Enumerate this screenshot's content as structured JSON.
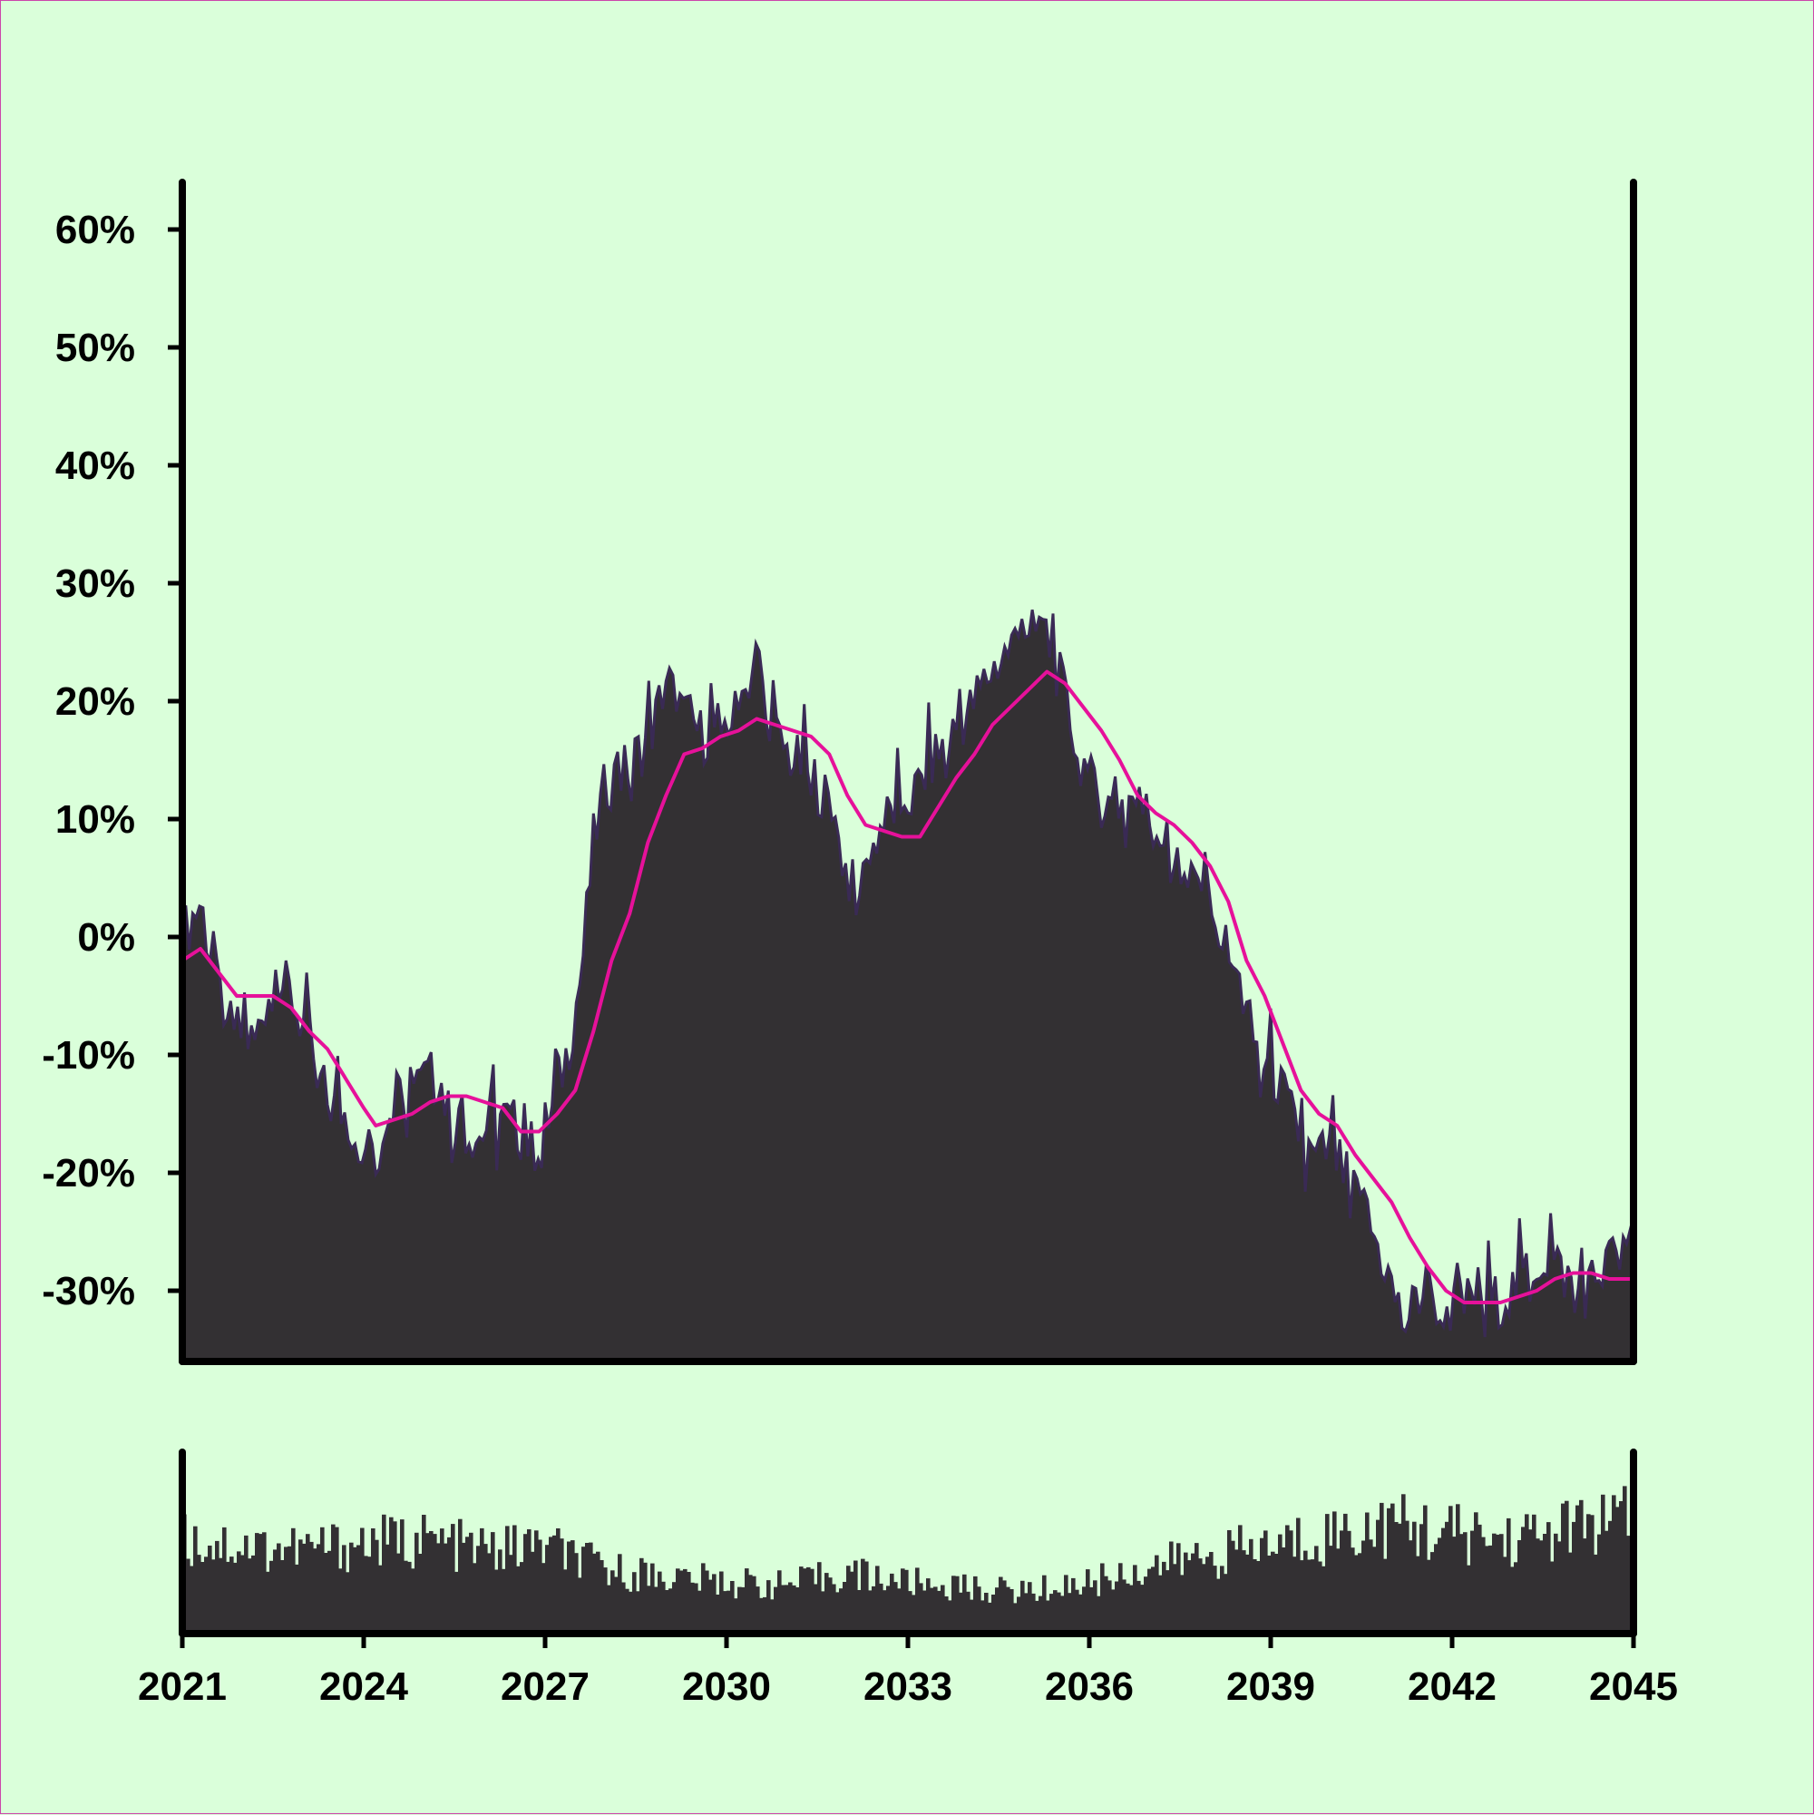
{
  "colors": {
    "background": "#daffda",
    "area_fill": "#333033",
    "area_edge": "#3a2a55",
    "moving_average": "#e6119a",
    "volume_bars": "#333033",
    "axes": "#000000"
  },
  "chart_data": [
    {
      "type": "area",
      "title": "",
      "xlabel": "",
      "ylabel": "",
      "x_ticks": [
        "2021",
        "2024",
        "2027",
        "2030",
        "2033",
        "2036",
        "2039",
        "2042",
        "2045"
      ],
      "y_ticks": [
        "60%",
        "50%",
        "40%",
        "30%",
        "20%",
        "10%",
        "0%",
        "-10%",
        "-20%",
        "-30%"
      ],
      "xlim": [
        2021,
        2045
      ],
      "ylim": [
        -36,
        64
      ],
      "grid": false,
      "legend": "none",
      "series": [
        {
          "style": "area",
          "points": [
            [
              2021.0,
              0
            ],
            [
              2021.3,
              3
            ],
            [
              2021.6,
              -5
            ],
            [
              2021.9,
              -8
            ],
            [
              2022.2,
              -9
            ],
            [
              2022.5,
              -3
            ],
            [
              2022.8,
              -5
            ],
            [
              2023.1,
              -9
            ],
            [
              2023.4,
              -14
            ],
            [
              2023.7,
              -15
            ],
            [
              2024.0,
              -18
            ],
            [
              2024.2,
              -20
            ],
            [
              2024.4,
              -14
            ],
            [
              2024.7,
              -12
            ],
            [
              2025.0,
              -10
            ],
            [
              2025.3,
              -13
            ],
            [
              2025.6,
              -16
            ],
            [
              2025.9,
              -17
            ],
            [
              2026.2,
              -15
            ],
            [
              2026.5,
              -16
            ],
            [
              2026.8,
              -18
            ],
            [
              2027.1,
              -15
            ],
            [
              2027.4,
              -9
            ],
            [
              2027.6,
              -3
            ],
            [
              2027.8,
              8
            ],
            [
              2028.0,
              13
            ],
            [
              2028.3,
              14
            ],
            [
              2028.6,
              16
            ],
            [
              2028.8,
              18
            ],
            [
              2029.0,
              22
            ],
            [
              2029.3,
              19
            ],
            [
              2029.6,
              17
            ],
            [
              2029.9,
              18
            ],
            [
              2030.2,
              19
            ],
            [
              2030.5,
              24
            ],
            [
              2030.8,
              17
            ],
            [
              2031.1,
              15
            ],
            [
              2031.4,
              14
            ],
            [
              2031.7,
              11
            ],
            [
              2031.9,
              7
            ],
            [
              2032.1,
              4
            ],
            [
              2032.3,
              5
            ],
            [
              2032.5,
              9
            ],
            [
              2032.8,
              11
            ],
            [
              2033.1,
              12
            ],
            [
              2033.4,
              15
            ],
            [
              2033.7,
              17
            ],
            [
              2034.0,
              19
            ],
            [
              2034.3,
              22
            ],
            [
              2034.6,
              24
            ],
            [
              2034.9,
              26
            ],
            [
              2035.2,
              27
            ],
            [
              2035.5,
              22
            ],
            [
              2035.8,
              16
            ],
            [
              2036.1,
              12
            ],
            [
              2036.4,
              11
            ],
            [
              2036.7,
              12
            ],
            [
              2037.0,
              10
            ],
            [
              2037.3,
              8
            ],
            [
              2037.6,
              4
            ],
            [
              2037.9,
              5
            ],
            [
              2038.2,
              0
            ],
            [
              2038.5,
              -5
            ],
            [
              2038.8,
              -10
            ],
            [
              2039.1,
              -12
            ],
            [
              2039.4,
              -16
            ],
            [
              2039.7,
              -19
            ],
            [
              2040.0,
              -18
            ],
            [
              2040.3,
              -21
            ],
            [
              2040.6,
              -24
            ],
            [
              2040.9,
              -28
            ],
            [
              2041.2,
              -33
            ],
            [
              2041.5,
              -30
            ],
            [
              2041.8,
              -31
            ],
            [
              2042.1,
              -32
            ],
            [
              2042.4,
              -30
            ],
            [
              2042.7,
              -31
            ],
            [
              2043.0,
              -30
            ],
            [
              2043.3,
              -28
            ],
            [
              2043.6,
              -27
            ],
            [
              2043.9,
              -29
            ],
            [
              2044.2,
              -30
            ],
            [
              2044.5,
              -28
            ],
            [
              2044.8,
              -27
            ],
            [
              2045.0,
              -25
            ]
          ]
        },
        {
          "style": "line",
          "points": [
            [
              2021.0,
              -2
            ],
            [
              2021.3,
              -1
            ],
            [
              2021.6,
              -3
            ],
            [
              2021.9,
              -5
            ],
            [
              2022.2,
              -5
            ],
            [
              2022.5,
              -5
            ],
            [
              2022.8,
              -6
            ],
            [
              2023.1,
              -8
            ],
            [
              2023.4,
              -9.5
            ],
            [
              2023.7,
              -12
            ],
            [
              2024.0,
              -14.5
            ],
            [
              2024.2,
              -16
            ],
            [
              2024.5,
              -15.5
            ],
            [
              2024.8,
              -15
            ],
            [
              2025.1,
              -14
            ],
            [
              2025.4,
              -13.5
            ],
            [
              2025.7,
              -13.5
            ],
            [
              2026.0,
              -14
            ],
            [
              2026.3,
              -14.5
            ],
            [
              2026.6,
              -16.5
            ],
            [
              2026.9,
              -16.5
            ],
            [
              2027.2,
              -15
            ],
            [
              2027.5,
              -13
            ],
            [
              2027.8,
              -8
            ],
            [
              2028.1,
              -2
            ],
            [
              2028.4,
              2
            ],
            [
              2028.7,
              8
            ],
            [
              2029.0,
              12
            ],
            [
              2029.3,
              15.5
            ],
            [
              2029.6,
              16
            ],
            [
              2029.9,
              17
            ],
            [
              2030.2,
              17.5
            ],
            [
              2030.5,
              18.5
            ],
            [
              2030.8,
              18
            ],
            [
              2031.1,
              17.5
            ],
            [
              2031.4,
              17
            ],
            [
              2031.7,
              15.5
            ],
            [
              2032.0,
              12
            ],
            [
              2032.3,
              9.5
            ],
            [
              2032.6,
              9
            ],
            [
              2032.9,
              8.5
            ],
            [
              2033.2,
              8.5
            ],
            [
              2033.5,
              11
            ],
            [
              2033.8,
              13.5
            ],
            [
              2034.1,
              15.5
            ],
            [
              2034.4,
              18
            ],
            [
              2034.7,
              19.5
            ],
            [
              2035.0,
              21
            ],
            [
              2035.3,
              22.5
            ],
            [
              2035.6,
              21.5
            ],
            [
              2035.9,
              19.5
            ],
            [
              2036.2,
              17.5
            ],
            [
              2036.5,
              15
            ],
            [
              2036.8,
              12
            ],
            [
              2037.1,
              10.5
            ],
            [
              2037.4,
              9.5
            ],
            [
              2037.7,
              8
            ],
            [
              2038.0,
              6
            ],
            [
              2038.3,
              3
            ],
            [
              2038.6,
              -2
            ],
            [
              2038.9,
              -5
            ],
            [
              2039.2,
              -9
            ],
            [
              2039.5,
              -13
            ],
            [
              2039.8,
              -15
            ],
            [
              2040.1,
              -16
            ],
            [
              2040.4,
              -18.5
            ],
            [
              2040.7,
              -20.5
            ],
            [
              2041.0,
              -22.5
            ],
            [
              2041.3,
              -25.5
            ],
            [
              2041.6,
              -28
            ],
            [
              2041.9,
              -30
            ],
            [
              2042.2,
              -31
            ],
            [
              2042.5,
              -31
            ],
            [
              2042.8,
              -31
            ],
            [
              2043.1,
              -30.5
            ],
            [
              2043.4,
              -30
            ],
            [
              2043.7,
              -29
            ],
            [
              2044.0,
              -28.5
            ],
            [
              2044.3,
              -28.5
            ],
            [
              2044.6,
              -29
            ],
            [
              2044.9,
              -29
            ],
            [
              2045.0,
              -29
            ]
          ]
        }
      ]
    },
    {
      "type": "bar",
      "title": "",
      "xlabel": "",
      "ylabel": "",
      "xlim": [
        2021,
        2045
      ],
      "ylim": [
        0,
        1
      ],
      "grid": false,
      "legend": "none",
      "series": [
        {
          "style": "volume",
          "envelope": [
            [
              2021.0,
              0.62
            ],
            [
              2022.0,
              0.58
            ],
            [
              2023.0,
              0.56
            ],
            [
              2024.0,
              0.6
            ],
            [
              2025.0,
              0.62
            ],
            [
              2026.0,
              0.55
            ],
            [
              2027.0,
              0.58
            ],
            [
              2028.0,
              0.42
            ],
            [
              2029.0,
              0.38
            ],
            [
              2030.0,
              0.34
            ],
            [
              2031.0,
              0.32
            ],
            [
              2032.0,
              0.4
            ],
            [
              2033.0,
              0.34
            ],
            [
              2034.0,
              0.3
            ],
            [
              2035.0,
              0.28
            ],
            [
              2036.0,
              0.34
            ],
            [
              2037.0,
              0.44
            ],
            [
              2038.0,
              0.52
            ],
            [
              2039.0,
              0.58
            ],
            [
              2040.0,
              0.66
            ],
            [
              2041.0,
              0.72
            ],
            [
              2042.0,
              0.66
            ],
            [
              2043.0,
              0.62
            ],
            [
              2044.0,
              0.7
            ],
            [
              2045.0,
              0.76
            ]
          ]
        }
      ]
    }
  ]
}
